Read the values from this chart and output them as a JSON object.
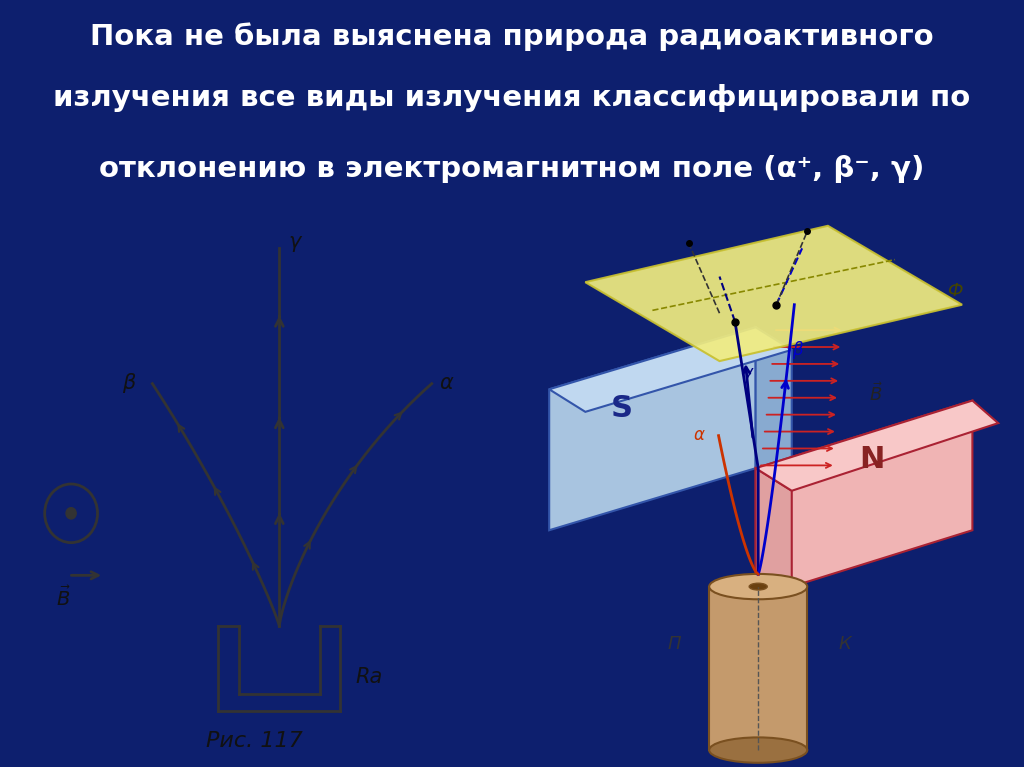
{
  "title_line1": "Пока не была выяснена природа радиоактивного",
  "title_line2": "излучения все виды излучения классифицировали по",
  "title_line3": "отклонению в электромагнитном поле (α⁺, β⁻, γ)",
  "title_color": "#ffffff",
  "title_fontsize": 21,
  "left_panel_bg": "#ffffff",
  "right_panel_bg": "#f5deb3",
  "fig_caption": "Рис. 117",
  "draw_color": "#333333",
  "magnet_S_face": "#a8c4e0",
  "magnet_S_side": "#88aad0",
  "magnet_S_top": "#c0d8f0",
  "magnet_N_face": "#f0b4b4",
  "magnet_N_side": "#e0a0a0",
  "magnet_N_top": "#f8c8c8",
  "plate_color": "#f0ec80",
  "plate_edge": "#c8c030",
  "cylinder_body": "#c49a6c",
  "cylinder_dark": "#9a7040",
  "cylinder_edge": "#7a5020",
  "B_arrow_color": "#cc2222",
  "gamma_color": "#000080",
  "beta_color": "#0000cc",
  "alpha_color": "#cc3300",
  "title_bg": "#0d1f6e",
  "border_color": "#1a3a9a"
}
